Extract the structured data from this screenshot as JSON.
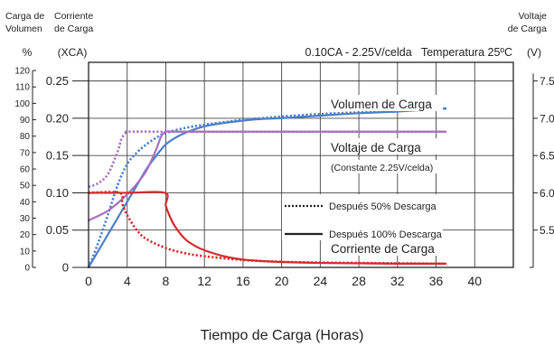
{
  "chart_data": {
    "type": "line",
    "title": "0.10CA - 2.25V/celda   Temperatura 25ºC",
    "xlabel": "Tiempo de Carga (Horas)",
    "x_ticks": [
      "0",
      "4",
      "8",
      "12",
      "16",
      "20",
      "24",
      "28",
      "32",
      "36",
      "40"
    ],
    "xlim": [
      0,
      44
    ],
    "axes": {
      "volume": {
        "header": [
          "Carga de",
          "Volumen"
        ],
        "unit": "%",
        "ticks": [
          "0",
          "10",
          "20",
          "30",
          "40",
          "50",
          "60",
          "70",
          "80",
          "90",
          "100",
          "110",
          "120"
        ],
        "range": [
          0,
          125
        ]
      },
      "current": {
        "header": [
          "Corriente",
          "de Carga"
        ],
        "unit": "(XCA)",
        "ticks": [
          "0",
          "0.05",
          "0.10",
          "0.15",
          "0.20",
          "0.25"
        ],
        "range": [
          0,
          0.275
        ]
      },
      "voltage": {
        "header": [
          "Voltaje",
          "de Carga"
        ],
        "unit": "(V)",
        "ticks": [
          "5.5",
          "6.0",
          "6.5",
          "7.0",
          "7.5"
        ],
        "range": [
          5.0,
          7.75
        ]
      }
    },
    "annotations": {
      "volume": "Volumen de Carga",
      "voltage": "Voltaje de Carga",
      "voltage_note": "(Constante 2.25V/celda)",
      "current": "Corriente de Carga"
    },
    "legend": [
      {
        "label": "Después 50% Descarga",
        "style": "dotted"
      },
      {
        "label": "Después 100% Descarga",
        "style": "solid"
      }
    ],
    "colors": {
      "volume": "#4a7fc8",
      "voltage": "#a86fc0",
      "current": "#d42a2a",
      "axis": "#222222",
      "grid": "#444444"
    },
    "series": [
      {
        "quantity": "volume",
        "axis": "volume",
        "style": "solid",
        "x": [
          0,
          1,
          2,
          3,
          4,
          5,
          6,
          7,
          8,
          9,
          10,
          12,
          14,
          16,
          18,
          20,
          24,
          28,
          32,
          36,
          37
        ],
        "y": [
          0,
          10,
          20,
          30,
          40,
          50,
          60,
          68,
          75,
          79,
          82,
          86,
          88,
          89.5,
          90.5,
          91,
          92.5,
          94,
          95,
          96.5,
          97
        ]
      },
      {
        "quantity": "volume",
        "axis": "volume",
        "style": "dotted",
        "x": [
          0,
          1,
          2,
          3,
          4,
          5,
          6,
          7,
          8,
          10,
          12,
          14,
          16,
          18,
          20,
          24,
          28,
          32,
          36,
          37
        ],
        "y": [
          0,
          15,
          32,
          50,
          63,
          70,
          75,
          79,
          82,
          85,
          87,
          88.5,
          90,
          91,
          92,
          93.5,
          94.5,
          95.5,
          96.5,
          96.5
        ]
      },
      {
        "quantity": "voltage",
        "axis": "voltage",
        "style": "solid",
        "x": [
          0,
          1,
          2,
          3,
          4,
          5,
          6,
          7,
          7.5,
          8,
          9,
          12,
          20,
          30,
          37
        ],
        "y": [
          5.63,
          5.69,
          5.76,
          5.86,
          5.98,
          6.12,
          6.3,
          6.58,
          6.75,
          6.82,
          6.82,
          6.82,
          6.82,
          6.82,
          6.82
        ]
      },
      {
        "quantity": "voltage",
        "axis": "voltage",
        "style": "dotted",
        "x": [
          0,
          1,
          2,
          3,
          3.4,
          3.8,
          4,
          8,
          20,
          37
        ],
        "y": [
          6.08,
          6.13,
          6.25,
          6.55,
          6.72,
          6.8,
          6.82,
          6.82,
          6.82,
          6.82
        ]
      },
      {
        "quantity": "current",
        "axis": "current",
        "style": "solid",
        "x": [
          0,
          4,
          7.9,
          8,
          8.5,
          9,
          10,
          11,
          12,
          14,
          16,
          18,
          20,
          24,
          28,
          32,
          37
        ],
        "y": [
          0.1,
          0.1,
          0.1,
          0.083,
          0.066,
          0.054,
          0.038,
          0.029,
          0.023,
          0.015,
          0.0105,
          0.0085,
          0.0072,
          0.006,
          0.0055,
          0.005,
          0.005
        ]
      },
      {
        "quantity": "current",
        "axis": "current",
        "style": "dotted",
        "x": [
          0,
          3.2,
          3.5,
          4,
          5,
          6,
          8,
          10,
          12,
          16,
          20,
          24,
          28,
          32,
          37
        ],
        "y": [
          0.1,
          0.1,
          0.085,
          0.07,
          0.05,
          0.038,
          0.026,
          0.019,
          0.015,
          0.01,
          0.0075,
          0.0065,
          0.006,
          0.0055,
          0.005
        ]
      }
    ]
  }
}
